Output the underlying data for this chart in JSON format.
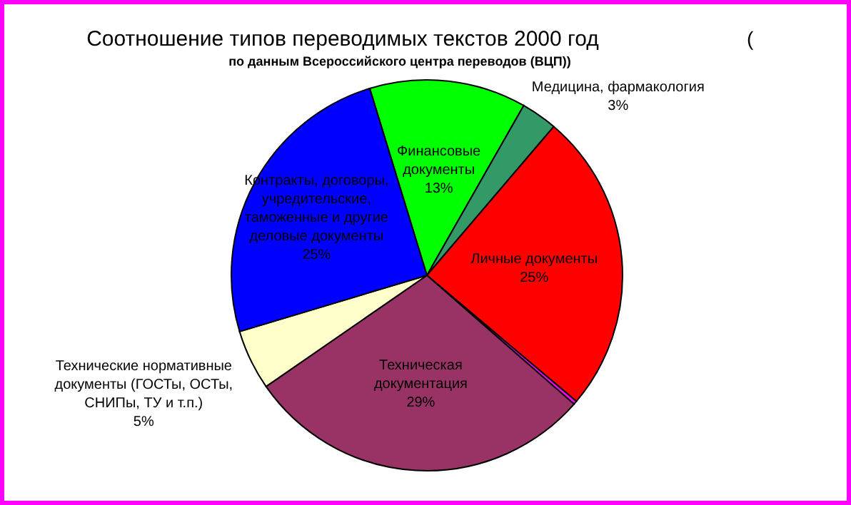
{
  "chart_data": {
    "type": "pie",
    "title": "Соотношение типов переводимых текстов 2000 год",
    "subtitle": "по данным Всероссийского центра переводов (ВЦП))",
    "annotations": [
      "("
    ],
    "categories": [
      "Финансовые документы",
      "Медицина, фармакология",
      "Личные документы",
      null,
      "Техническая документация",
      "Технические нормативные документы (ГОСТы, ОСТы, СНИПы, ТУ и т.п.)",
      "Контракты, договоры, учредительские, таможенные и другие деловые документы"
    ],
    "values": [
      13,
      3,
      25,
      0.3,
      29,
      5,
      25
    ],
    "value_labels": [
      "13%",
      "3%",
      "25%",
      null,
      "29%",
      "5%",
      "25%"
    ],
    "colors": [
      "#00ff00",
      "#339966",
      "#ff0000",
      "#ff00ff",
      "#993366",
      "#ffffcc",
      "#0000ff"
    ]
  }
}
